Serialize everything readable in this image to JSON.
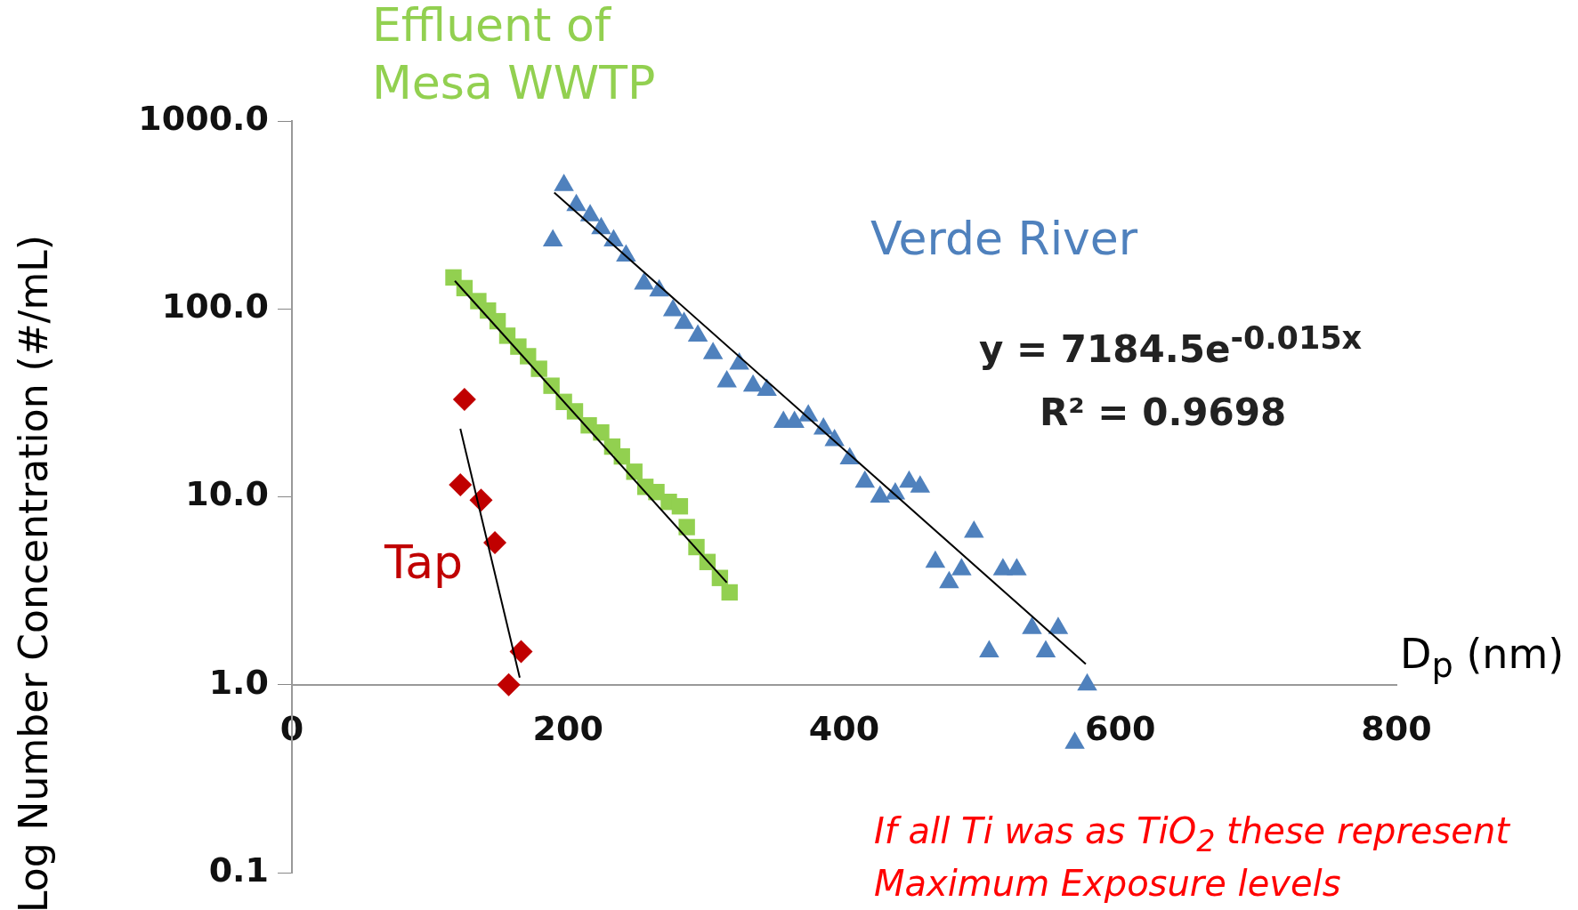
{
  "chart_data": {
    "type": "scatter",
    "xlabel": "D$_{p}$ (nm)",
    "ylabel": "Log Number Concentration (#/mL)",
    "xlim": [
      0,
      800
    ],
    "xticks": [
      0,
      200,
      400,
      600,
      800
    ],
    "ylim": [
      0.1,
      1000
    ],
    "yticks": [
      {
        "value": 0.1,
        "label": "0.1"
      },
      {
        "value": 1,
        "label": "1.0"
      },
      {
        "value": 10,
        "label": "10.0"
      },
      {
        "value": 100,
        "label": "100.0"
      },
      {
        "value": 1000,
        "label": "1000.0"
      }
    ],
    "log": "y",
    "grid": false,
    "legend": false,
    "series": [
      {
        "name": "Effluent of Mesa WWTP",
        "color": "#92d050",
        "marker": "square",
        "x": [
          117,
          125,
          135,
          142,
          149,
          156,
          164,
          171,
          179,
          188,
          197,
          205,
          215,
          224,
          232,
          239,
          248,
          256,
          264,
          273,
          281,
          286,
          293,
          301,
          310,
          317
        ],
        "values": [
          147,
          129,
          110,
          98,
          86,
          72,
          63,
          56,
          48,
          39,
          32,
          28.5,
          24,
          22,
          18.5,
          16.4,
          13.6,
          11.3,
          10.6,
          9.4,
          8.9,
          6.9,
          5.4,
          4.5,
          3.7,
          3.1
        ]
      },
      {
        "name": "Verde River",
        "color": "#4f81bd",
        "marker": "triangle",
        "x": [
          197,
          189,
          206,
          216,
          224,
          233,
          242,
          255,
          266,
          276,
          284,
          294,
          305,
          315,
          324,
          334,
          344,
          356,
          364,
          374,
          385,
          393,
          404,
          415,
          426,
          437,
          447,
          455,
          466,
          476,
          485,
          494,
          505,
          515,
          525,
          536,
          546,
          555,
          576,
          567
        ],
        "values": [
          455,
          231,
          356,
          314,
          268,
          231,
          192,
          136,
          125,
          98,
          84,
          72,
          58,
          41,
          51,
          39,
          37,
          25,
          25,
          27,
          23,
          20,
          16,
          12,
          10,
          10.4,
          12,
          11.3,
          4.5,
          3.5,
          4.1,
          6.5,
          1.5,
          4.1,
          4.1,
          2,
          1.5,
          2,
          1,
          0.49
        ]
      },
      {
        "name": "Tap",
        "color": "#c00000",
        "marker": "diamond",
        "x": [
          125,
          122,
          137,
          147,
          166,
          157
        ],
        "values": [
          33,
          11.6,
          9.6,
          5.7,
          1.5,
          1
        ]
      },
      {
        "type": "line",
        "color": "#000000",
        "marker": "none",
        "x": [
          118,
          315
        ],
        "values": [
          141,
          3.5
        ]
      },
      {
        "type": "line",
        "color": "#000000",
        "marker": "none",
        "x": [
          190,
          575
        ],
        "values": [
          416,
          1.29
        ]
      },
      {
        "type": "line",
        "color": "#000000",
        "marker": "none",
        "x": [
          122,
          165
        ],
        "values": [
          23,
          1.09
        ]
      }
    ],
    "annotations": [
      "y = 7184.5e$^{-0.015x}$",
      "R² = 0.9698",
      "If all Ti was as TiO$_{2}$ these represent Maximum Exposure levels"
    ]
  }
}
